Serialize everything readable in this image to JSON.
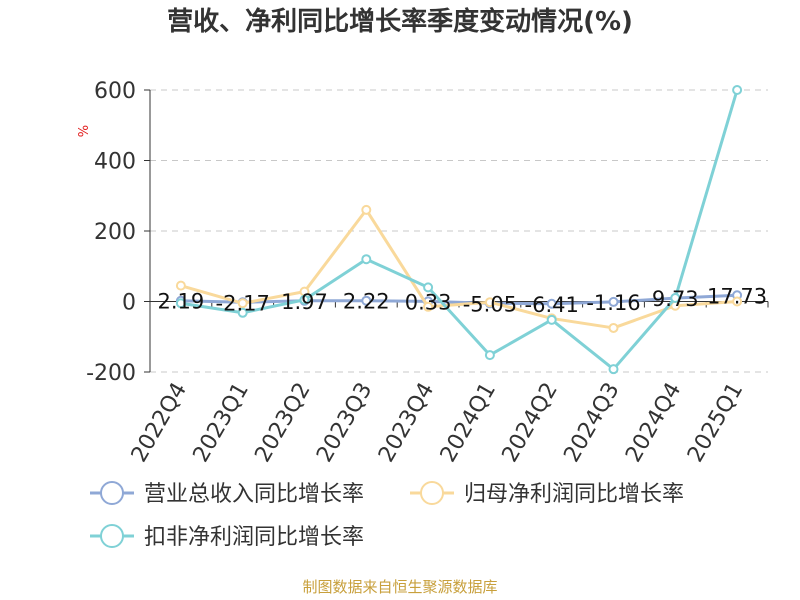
{
  "chart_data": {
    "type": "line",
    "title": "营收、净利同比增长率季度变动情况(%)",
    "ylabel": "%",
    "ylim": [
      -200,
      600
    ],
    "yticks": [
      -200,
      0,
      200,
      400,
      600
    ],
    "grid": true,
    "legend_position": "bottom",
    "categories": [
      "2022Q4",
      "2023Q1",
      "2023Q2",
      "2023Q3",
      "2023Q4",
      "2024Q1",
      "2024Q2",
      "2024Q3",
      "2024Q4",
      "2025Q1"
    ],
    "series": [
      {
        "name": "营业总收入同比增长率",
        "color": "#8fa8d6",
        "values": [
          2.19,
          -2.17,
          1.97,
          2.22,
          0.33,
          -5.05,
          -6.41,
          -1.16,
          9.73,
          17.73
        ],
        "labels": [
          "2.19",
          "-2.17",
          "1.97",
          "2.22",
          "0.33",
          "-5.05",
          "-6.41",
          "-1.16",
          "9.73",
          "17.73"
        ]
      },
      {
        "name": "归母净利润同比增长率",
        "color": "#f9d99b",
        "values": [
          45,
          -5,
          28,
          260,
          -15,
          -2,
          -48,
          -75,
          -12,
          0
        ]
      },
      {
        "name": "扣非净利润同比增长率",
        "color": "#7fd1d6",
        "values": [
          -5,
          -32,
          5,
          120,
          40,
          -152,
          -52,
          -192,
          10,
          600
        ]
      }
    ]
  },
  "source_note": "制图数据来自恒生聚源数据库"
}
